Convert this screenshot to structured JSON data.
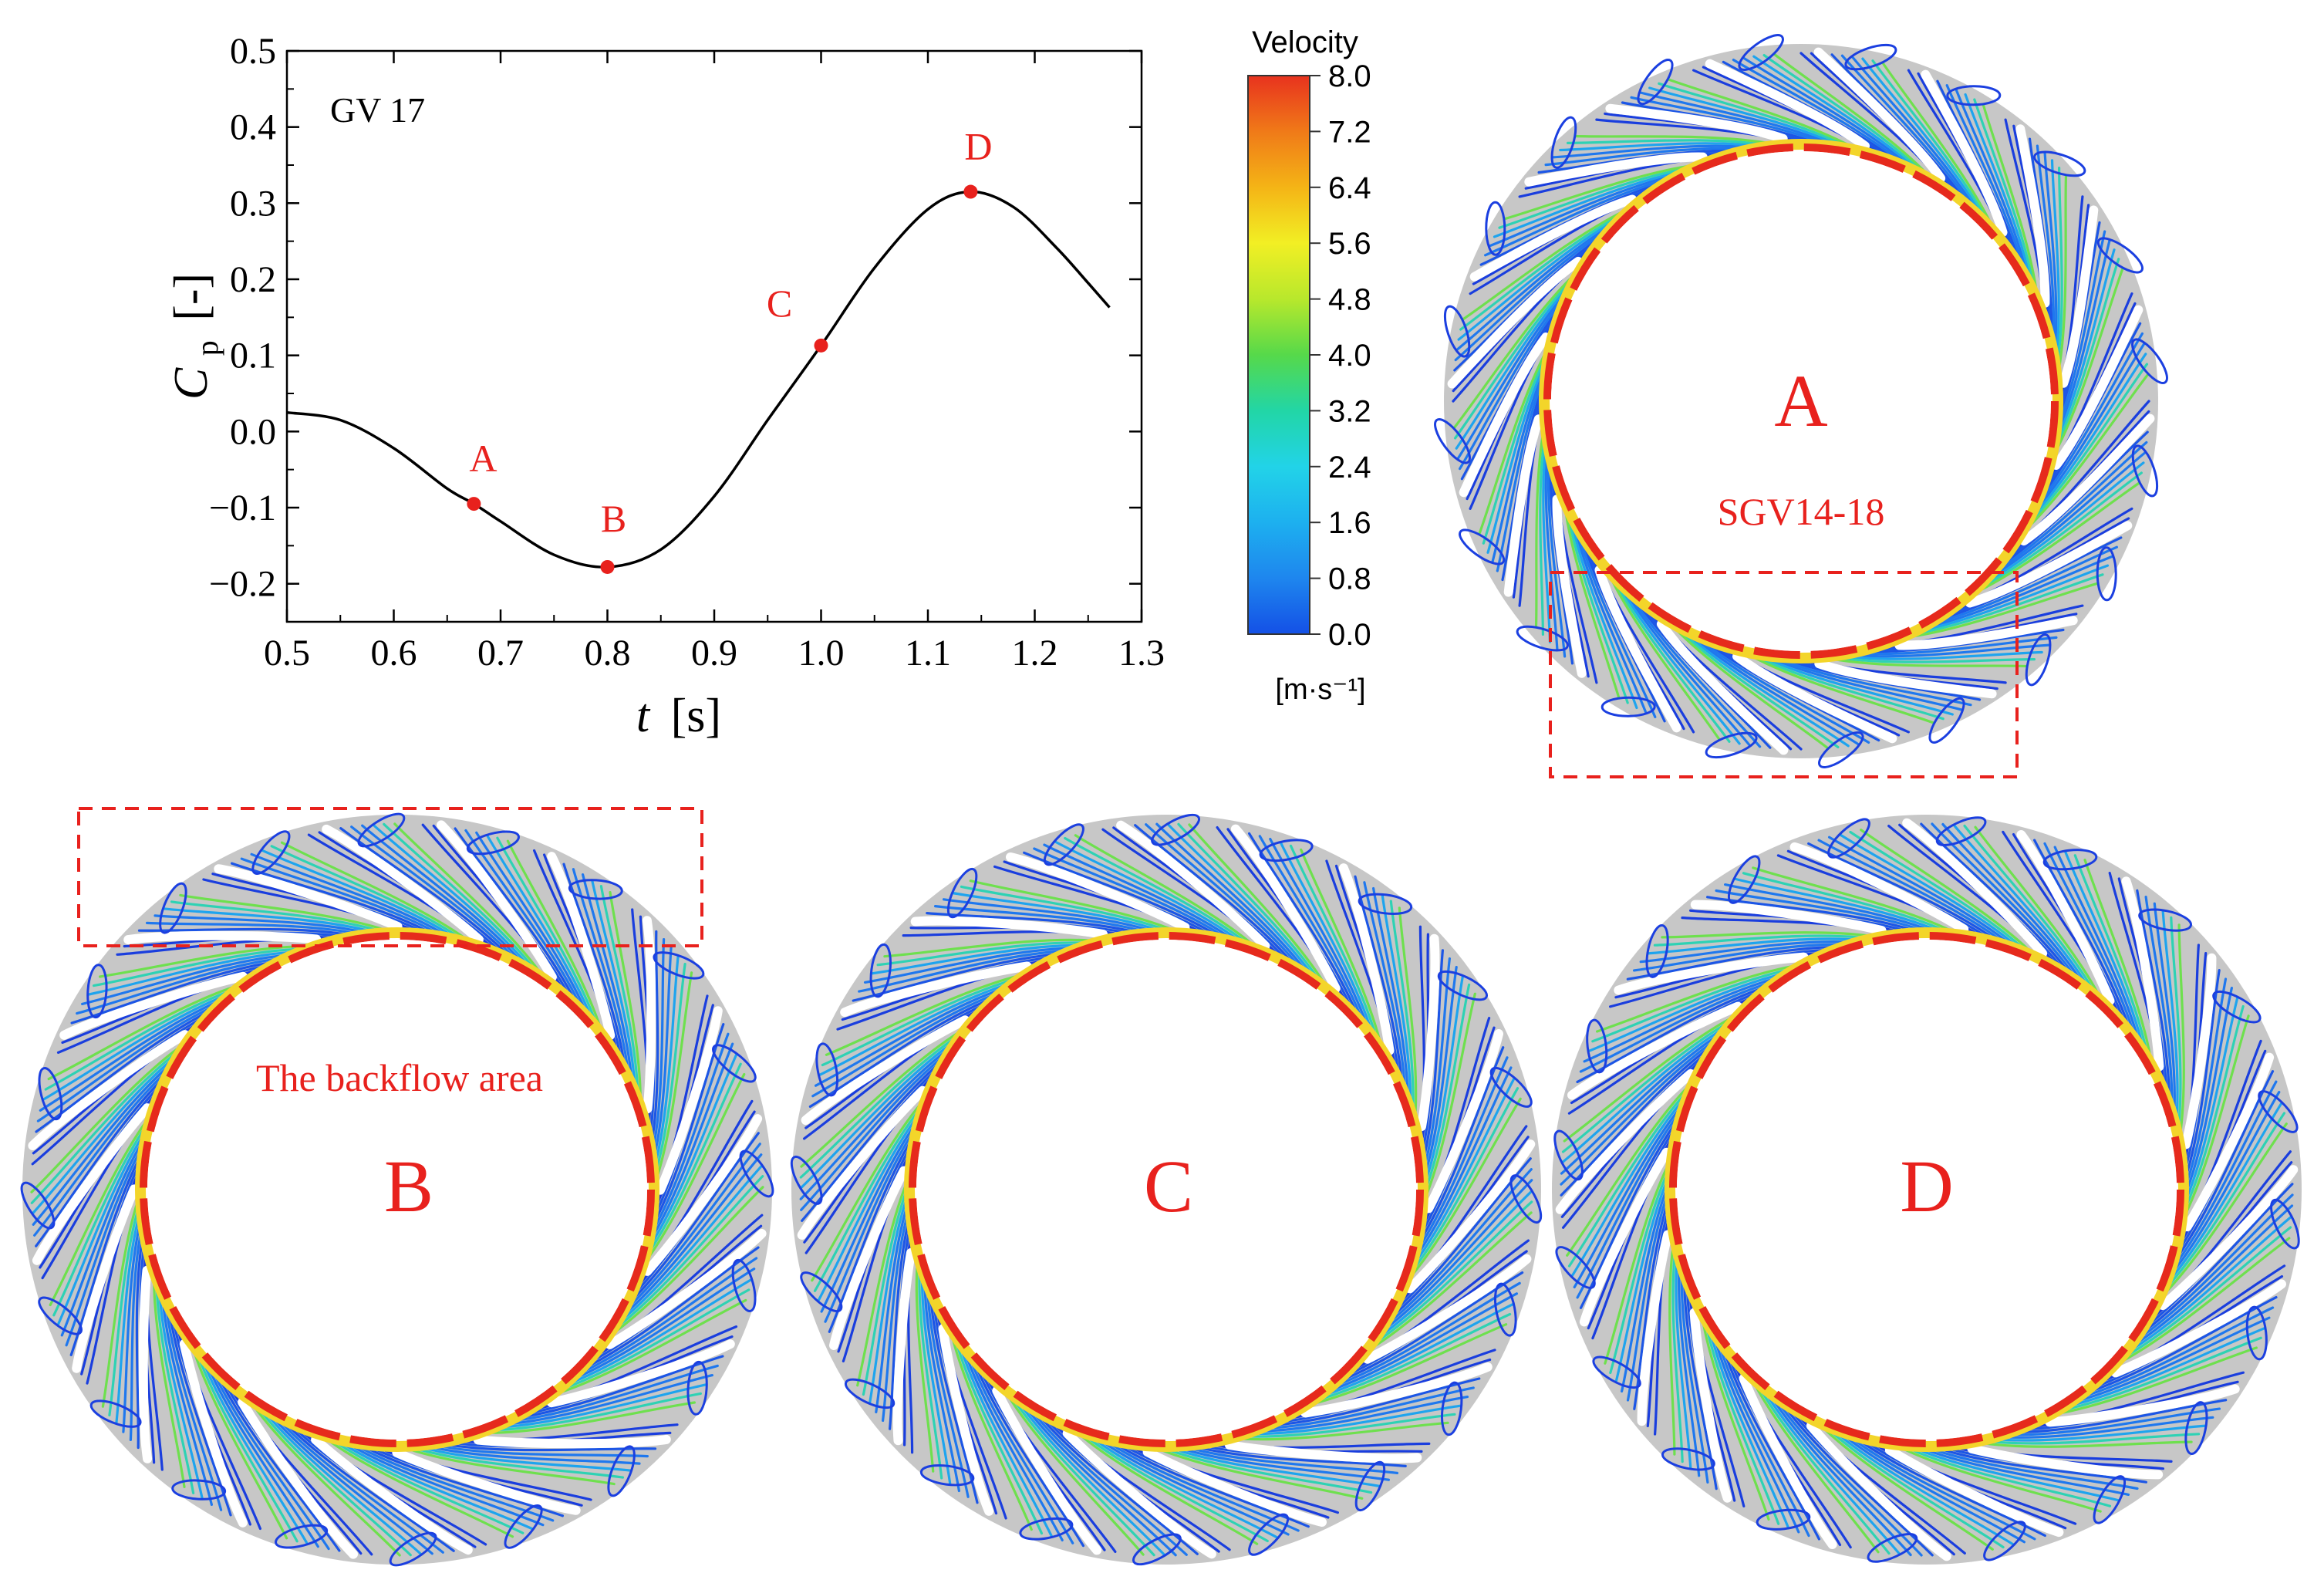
{
  "chart_data": {
    "type": "line",
    "annotation": "GV 17",
    "xlabel": "t",
    "xunit": "[s]",
    "ylabel_main": "C",
    "ylabel_sub": "p",
    "yunit": "[-]",
    "xlim": [
      0.5,
      1.3
    ],
    "ylim": [
      -0.25,
      0.5
    ],
    "xticks": [
      "0.5",
      "0.6",
      "0.7",
      "0.8",
      "0.9",
      "1.0",
      "1.1",
      "1.2",
      "1.3"
    ],
    "yticks": [
      "0.5",
      "0.4",
      "0.3",
      "0.2",
      "0.1",
      "0.0",
      "−0.1",
      "−0.2"
    ],
    "grid": false,
    "series": [
      {
        "x": [
          0.5,
          0.55,
          0.6,
          0.65,
          0.675,
          0.7,
          0.75,
          0.8,
          0.85,
          0.9,
          0.95,
          1.0,
          1.05,
          1.1,
          1.14,
          1.18,
          1.22,
          1.25,
          1.27
        ],
        "y": [
          0.025,
          0.015,
          -0.022,
          -0.075,
          -0.095,
          -0.118,
          -0.162,
          -0.178,
          -0.155,
          -0.085,
          0.015,
          0.113,
          0.215,
          0.292,
          0.315,
          0.295,
          0.242,
          0.195,
          0.163
        ],
        "color": "#000000"
      }
    ],
    "marked_points": [
      {
        "label": "A",
        "x": 0.675,
        "y": -0.095
      },
      {
        "label": "B",
        "x": 0.8,
        "y": -0.178
      },
      {
        "label": "C",
        "x": 1.0,
        "y": 0.113
      },
      {
        "label": "D",
        "x": 1.14,
        "y": 0.315
      }
    ],
    "point_color": "#e8211d"
  },
  "colorbar": {
    "title": "Velocity",
    "unit": "[m·s⁻¹]",
    "ticks": [
      "8.0",
      "7.2",
      "6.4",
      "5.6",
      "4.8",
      "4.0",
      "3.2",
      "2.4",
      "1.6",
      "0.8",
      "0.0"
    ],
    "colors": [
      "#e8321e",
      "#f07a18",
      "#f4b416",
      "#f2ef24",
      "#b8e82c",
      "#56d94a",
      "#22d6a6",
      "#22d3e8",
      "#1db0ef",
      "#1e86ee",
      "#1450e6"
    ]
  },
  "panels": [
    {
      "label": "A",
      "sublabel": "SGV14-18"
    },
    {
      "label": "B",
      "sublabel": "The backflow area"
    },
    {
      "label": "C",
      "sublabel": ""
    },
    {
      "label": "D",
      "sublabel": ""
    }
  ],
  "colors": {
    "annotation_red": "#e8211d",
    "blade_blue": "#1b3fe0",
    "ring_gray": "#c7c7c7"
  }
}
